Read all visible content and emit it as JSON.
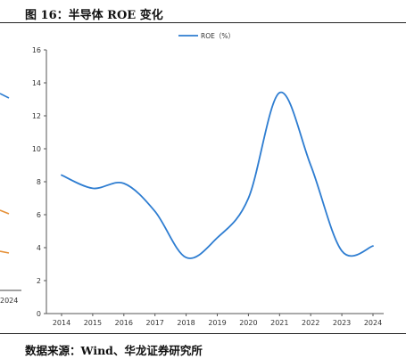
{
  "page": {
    "figure_title": "图 16：半导体 ROE 变化",
    "source_note": "数据来源：Wind、华龙证券研究所"
  },
  "colors": {
    "series_line": "#2e7dd1",
    "axis": "#555555",
    "rule": "#222222",
    "neighbor_orange": "#e69138",
    "neighbor_blue": "#2e7dd1"
  },
  "neighbor_fragment": {
    "tick_label": "2024"
  },
  "chart_data": {
    "type": "line",
    "title": "",
    "xlabel": "",
    "ylabel": "",
    "categories": [
      "2014",
      "2015",
      "2016",
      "2017",
      "2018",
      "2019",
      "2020",
      "2021",
      "2022",
      "2023",
      "2024"
    ],
    "ylim": [
      0,
      16
    ],
    "yticks": [
      0,
      2,
      4,
      6,
      8,
      10,
      12,
      14,
      16
    ],
    "grid": false,
    "legend_position": "top-center",
    "smooth": true,
    "series": [
      {
        "name": "ROE（%）",
        "values": [
          8.4,
          7.6,
          7.9,
          6.2,
          3.4,
          4.6,
          7.0,
          13.4,
          9.0,
          3.8,
          4.1
        ]
      }
    ]
  }
}
